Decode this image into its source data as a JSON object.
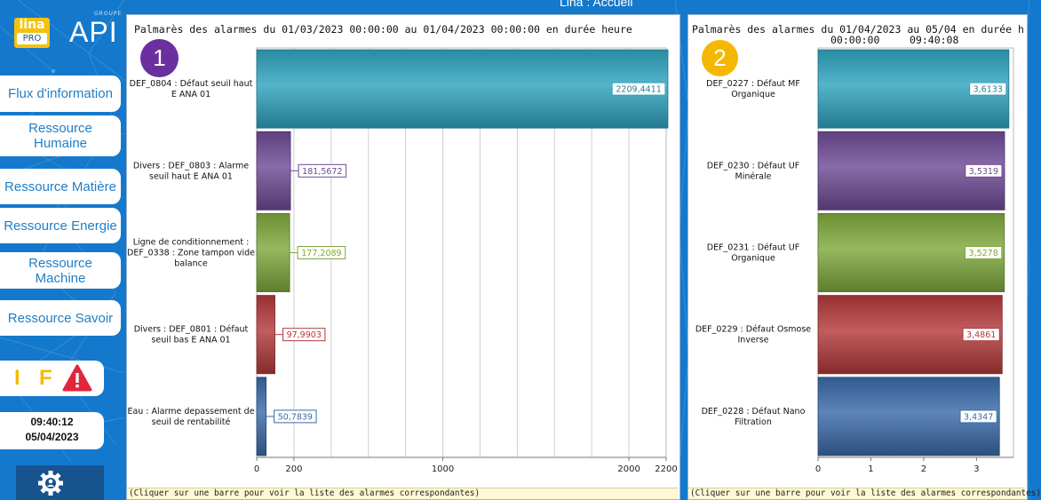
{
  "window_title": "Lina : Accueil",
  "logo": {
    "lina_top": "lina",
    "lina_bottom": "PRO",
    "api": "API",
    "groupe": "GROUPE"
  },
  "nav": [
    {
      "label": "Flux d'information"
    },
    {
      "label": "Ressource Humaine"
    },
    {
      "label": "Ressource Matière"
    },
    {
      "label": "Ressource Energie"
    },
    {
      "label": "Ressource Machine"
    },
    {
      "label": "Ressource Savoir"
    }
  ],
  "indicators": {
    "i": "I",
    "f": "F",
    "warning_icon": "warning-triangle-icon",
    "i_color": "#f5b800",
    "f_color": "#f5b800",
    "warning_color": "#e2263a"
  },
  "clock": {
    "time": "09:40:12",
    "date": "05/04/2023"
  },
  "settings_icon": "gear-icon",
  "panel1": {
    "title": "Palmarès des alarmes du 01/03/2023 00:00:00 au 01/04/2023 00:00:00 en durée heure",
    "badge": "1",
    "badge_color": "#6b2fa0",
    "footer": "(Cliquer sur une barre pour voir la liste des alarmes correspondantes)"
  },
  "panel2": {
    "title_line1": "Palmarès des alarmes du 01/04/2023 au 05/04 en durée h",
    "title_line2a": "00:00:00",
    "title_line2b": "09:40:08",
    "badge": "2",
    "badge_color": "#f5b800",
    "footer": "(Cliquer sur une barre pour voir la liste des alarmes correspondantes)"
  },
  "chart_data": [
    {
      "type": "bar",
      "orientation": "horizontal",
      "title": "Palmarès des alarmes du 01/03/2023 00:00:00 au 01/04/2023 00:00:00 en durée heure",
      "categories": [
        "DEF_0804 : Défaut seuil haut E ANA 01",
        "Divers : DEF_0803 : Alarme seuil haut E ANA 01",
        "Ligne de conditionnement : DEF_0338 : Zone tampon vide balance",
        "Divers : DEF_0801 : Défaut seuil bas E ANA 01",
        "Eau : Alarme depassement de seuil de rentabilité"
      ],
      "values": [
        2209.4411,
        181.5672,
        177.2089,
        97.9903,
        50.7839
      ],
      "value_labels": [
        "2209,4411",
        "181,5672",
        "177,2089",
        "97,9903",
        "50,7839"
      ],
      "colors": [
        "#2fa3be",
        "#6e4a95",
        "#7fa83c",
        "#b3393b",
        "#3a6aa8"
      ],
      "xlim": [
        0,
        2200
      ],
      "xticks": [
        0,
        200,
        1000,
        2000,
        2200
      ],
      "grid": true
    },
    {
      "type": "bar",
      "orientation": "horizontal",
      "title": "Palmarès des alarmes du 01/04/2023 au 05/04 en durée h",
      "categories": [
        "DEF_0227 : Défaut MF Organique",
        "DEF_0230 : Défaut UF Minérale",
        "DEF_0231 : Défaut UF Organique",
        "DEF_0229 : Défaut Osmose Inverse",
        "DEF_0228 : Défaut Nano Filtration"
      ],
      "values": [
        3.6133,
        3.5319,
        3.5278,
        3.4861,
        3.4347
      ],
      "value_labels": [
        "3,6133",
        "3,5319",
        "3,5278",
        "3,4861",
        "3,4347"
      ],
      "colors": [
        "#2fa3be",
        "#6e4a95",
        "#7fa83c",
        "#b3393b",
        "#3a6aa8"
      ],
      "xlim": [
        0,
        3.7
      ],
      "xticks": [
        0,
        1,
        2,
        3
      ],
      "grid": false
    }
  ]
}
